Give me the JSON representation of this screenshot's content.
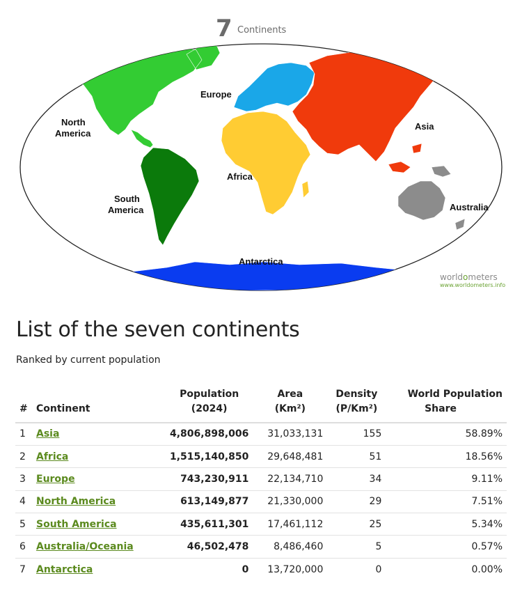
{
  "map": {
    "title_number": "7",
    "title_word": "Continents",
    "labels": {
      "north_america": [
        "North",
        "America"
      ],
      "south_america": [
        "South",
        "America"
      ],
      "europe": "Europe",
      "africa": "Africa",
      "asia": "Asia",
      "australia": "Australia",
      "antarctica": "Antarctica"
    },
    "colors": {
      "north_america": "#33cc33",
      "south_america": "#0b7a0b",
      "europe": "#1aa7e8",
      "africa": "#ffcc33",
      "asia": "#f03a0c",
      "australia": "#8c8c8c",
      "antarctica": "#0a3cf0"
    },
    "watermark": {
      "logo_pre": "world",
      "logo_o": "o",
      "logo_post": "meters",
      "url": "www.worldometers.info"
    }
  },
  "list": {
    "title": "List of the seven continents",
    "subtitle": "Ranked by current population",
    "headers": {
      "rank": "#",
      "continent": "Continent",
      "population": [
        "Population",
        "(2024)"
      ],
      "area": [
        "Area",
        "(Km²)"
      ],
      "density": [
        "Density",
        "(P/Km²)"
      ],
      "share": [
        "World Population",
        "Share"
      ]
    },
    "rows": [
      {
        "rank": "1",
        "continent": "Asia",
        "population": "4,806,898,006",
        "area": "31,033,131",
        "density": "155",
        "share": "58.89%"
      },
      {
        "rank": "2",
        "continent": "Africa",
        "population": "1,515,140,850",
        "area": "29,648,481",
        "density": "51",
        "share": "18.56%"
      },
      {
        "rank": "3",
        "continent": "Europe",
        "population": "743,230,911",
        "area": "22,134,710",
        "density": "34",
        "share": "9.11%"
      },
      {
        "rank": "4",
        "continent": "North America",
        "population": "613,149,877",
        "area": "21,330,000",
        "density": "29",
        "share": "7.51%"
      },
      {
        "rank": "5",
        "continent": "South America",
        "population": "435,611,301",
        "area": "17,461,112",
        "density": "25",
        "share": "5.34%"
      },
      {
        "rank": "6",
        "continent": "Australia/Oceania",
        "population": "46,502,478",
        "area": "8,486,460",
        "density": "5",
        "share": "0.57%"
      },
      {
        "rank": "7",
        "continent": "Antarctica",
        "population": "0",
        "area": "13,720,000",
        "density": "0",
        "share": "0.00%"
      }
    ]
  }
}
